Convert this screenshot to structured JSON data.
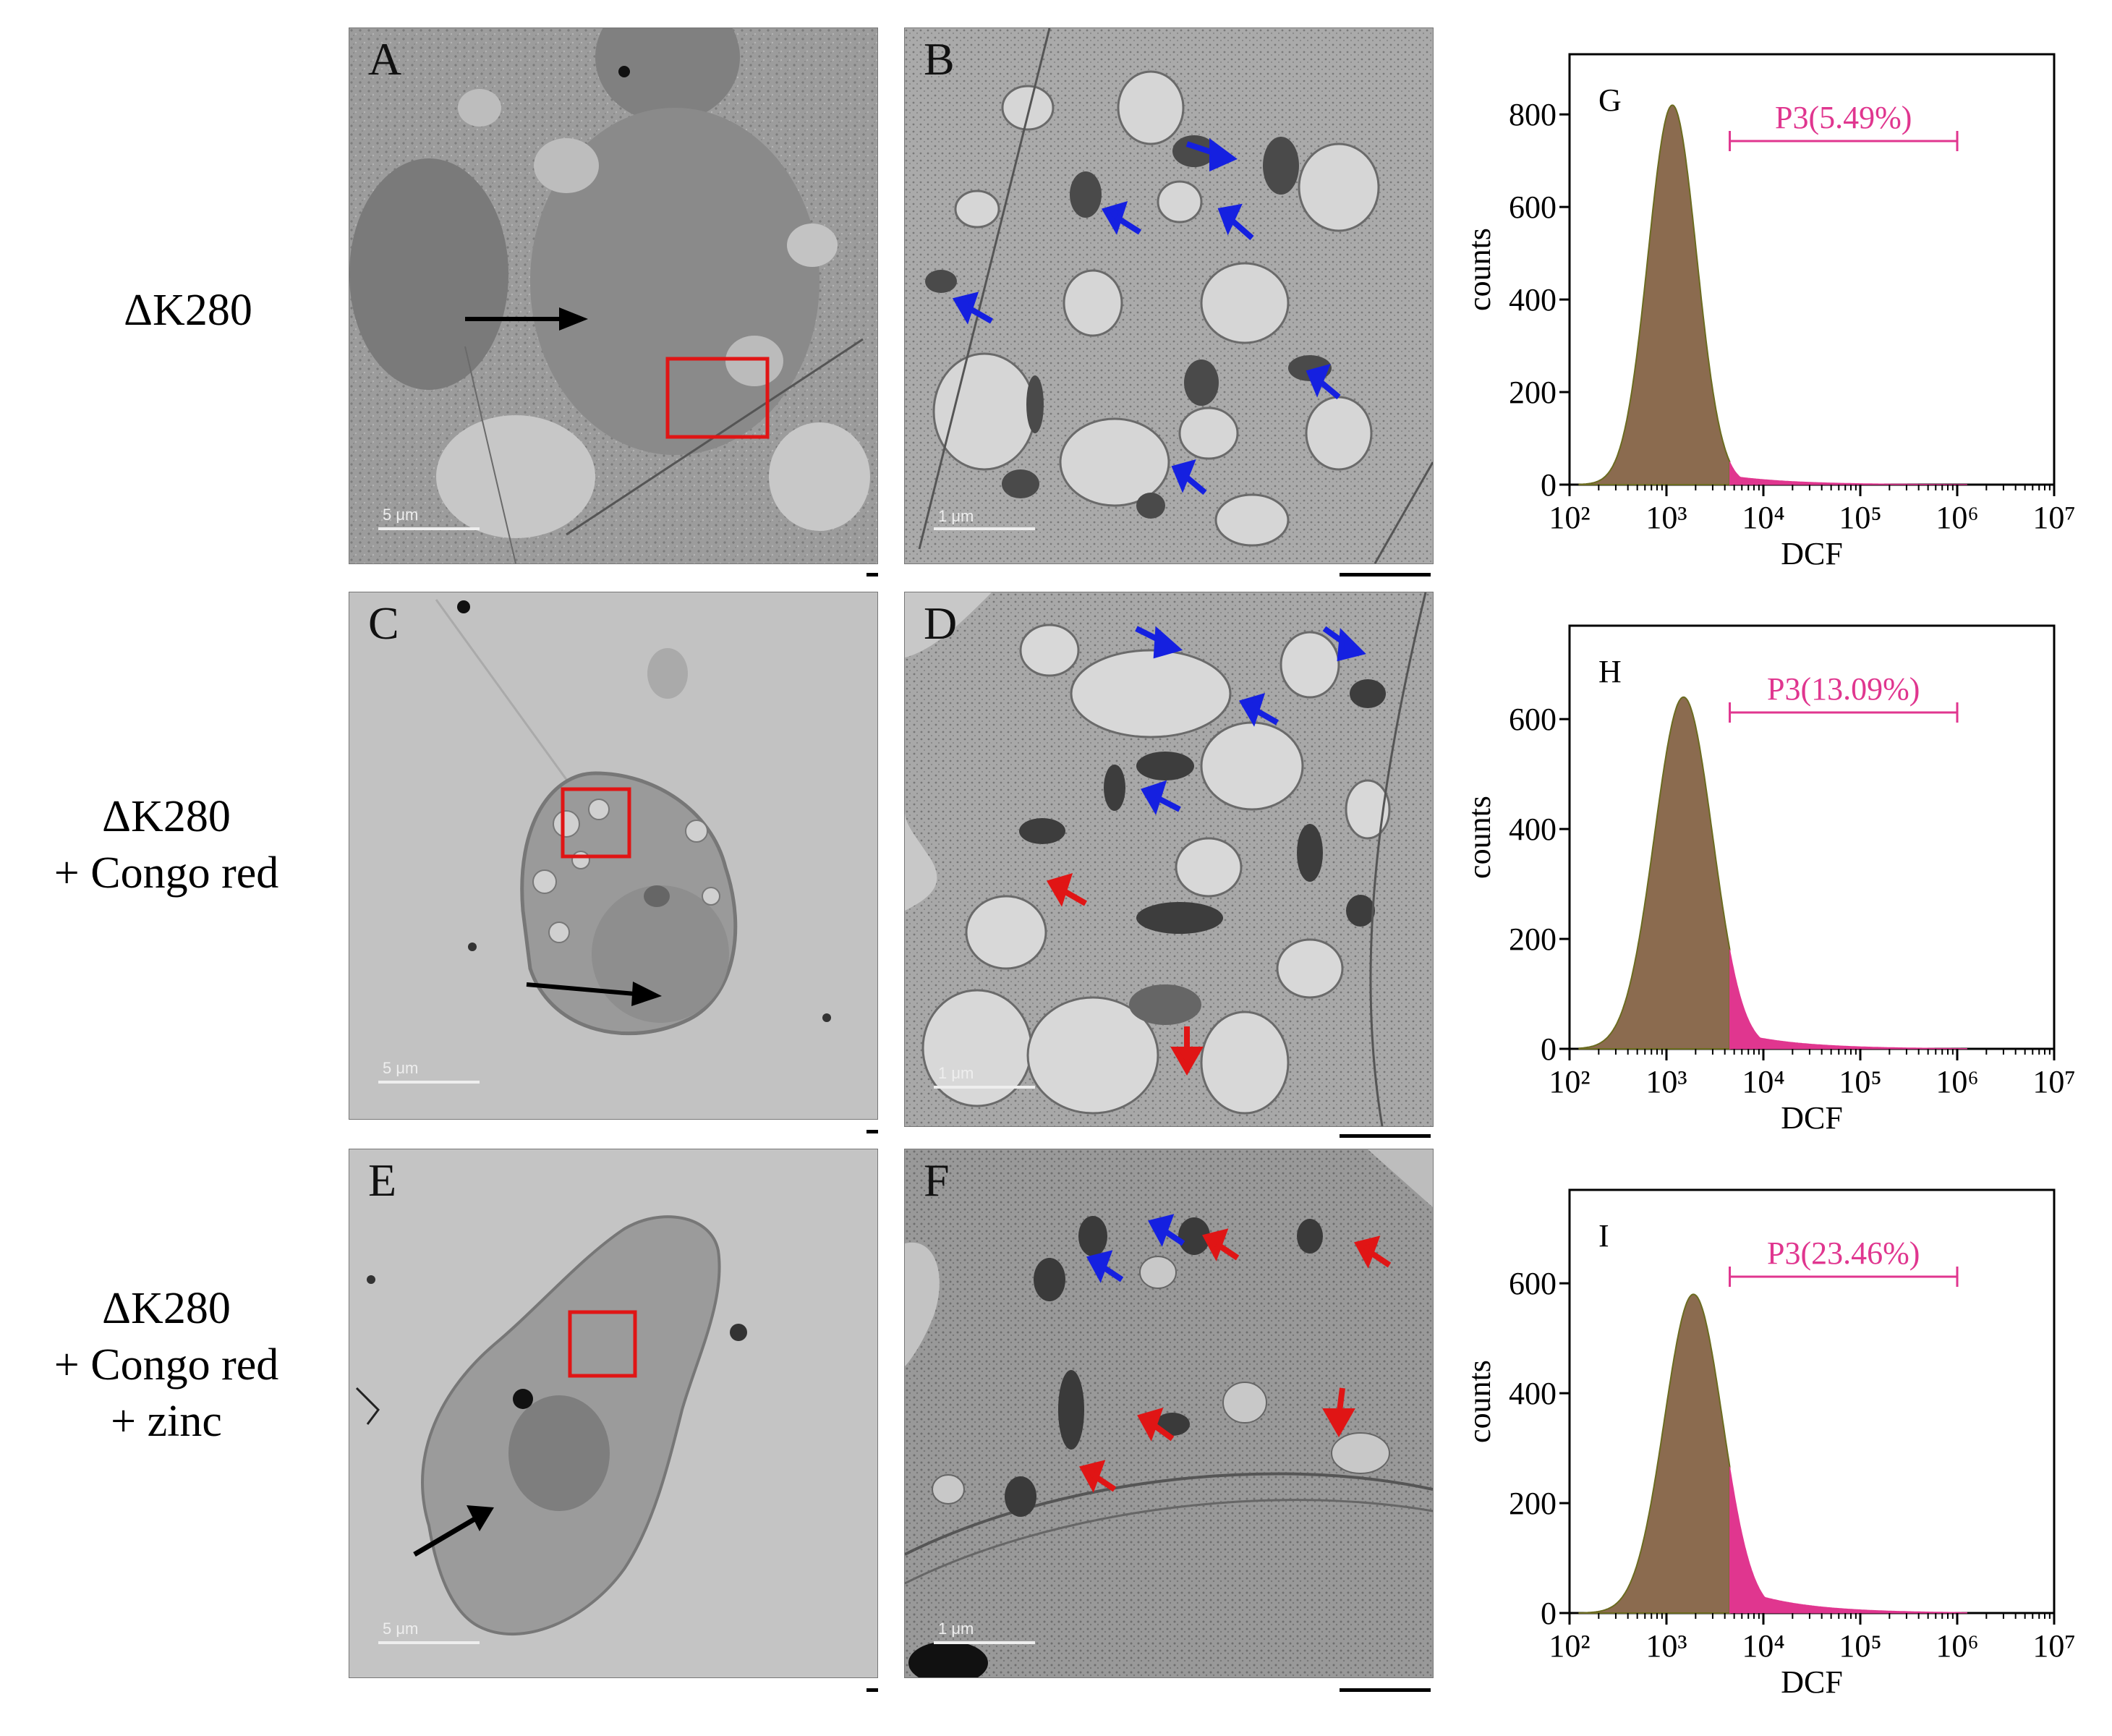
{
  "rows": [
    {
      "label_lines": [
        "ΔK280"
      ]
    },
    {
      "label_lines": [
        "ΔK280",
        "+  Congo red"
      ]
    },
    {
      "label_lines": [
        "ΔK280",
        "+  Congo red",
        "+ zinc"
      ]
    }
  ],
  "panels": {
    "A": {
      "letter": "A",
      "scale": "5 μm"
    },
    "B": {
      "letter": "B",
      "scale": "1 μm"
    },
    "C": {
      "letter": "C",
      "scale": "5 μm"
    },
    "D": {
      "letter": "D",
      "scale": "1 μm"
    },
    "E": {
      "letter": "E",
      "scale": "5 μm"
    },
    "F": {
      "letter": "F",
      "scale": "1 μm"
    }
  },
  "colors": {
    "histogram_main": "#8B6B4F",
    "histogram_outline": "#6B6B20",
    "gate": "#E0368F",
    "arrow_black": "#000000",
    "arrow_blue": "#1520E0",
    "arrow_red": "#E01515",
    "box_red": "#E01515"
  },
  "chart_data": [
    {
      "type": "histogram",
      "letter": "G",
      "xlabel": "DCF",
      "ylabel": "counts",
      "x_scale": "log",
      "xlim": [
        100,
        10000000
      ],
      "xticks": [
        "10²",
        "10³",
        "10⁴",
        "10⁵",
        "10⁶",
        "10⁷"
      ],
      "yticks": [
        0,
        200,
        400,
        600,
        800
      ],
      "ylim": [
        0,
        930
      ],
      "peak_x": 1150,
      "peak_y": 820,
      "log_sd": 0.25,
      "tail_level": 0.06,
      "gate": {
        "label": "P3(5.49%)",
        "x_start": 4500,
        "x_end": 1000000
      }
    },
    {
      "type": "histogram",
      "letter": "H",
      "xlabel": "DCF",
      "ylabel": "counts",
      "x_scale": "log",
      "xlim": [
        100,
        10000000
      ],
      "xticks": [
        "10²",
        "10³",
        "10⁴",
        "10⁵",
        "10⁶",
        "10⁷"
      ],
      "yticks": [
        0,
        200,
        400,
        600
      ],
      "ylim": [
        0,
        770
      ],
      "peak_x": 1500,
      "peak_y": 640,
      "log_sd": 0.3,
      "tail_level": 0.11,
      "gate": {
        "label": "P3(13.09%)",
        "x_start": 4500,
        "x_end": 1000000
      }
    },
    {
      "type": "histogram",
      "letter": "I",
      "xlabel": "DCF",
      "ylabel": "counts",
      "x_scale": "log",
      "xlim": [
        100,
        10000000
      ],
      "xticks": [
        "10²",
        "10³",
        "10⁴",
        "10⁵",
        "10⁶",
        "10⁷"
      ],
      "yticks": [
        0,
        200,
        400,
        600
      ],
      "ylim": [
        0,
        770
      ],
      "peak_x": 1900,
      "peak_y": 580,
      "log_sd": 0.3,
      "tail_level": 0.16,
      "gate": {
        "label": "P3(23.46%)",
        "x_start": 4500,
        "x_end": 1000000
      }
    }
  ]
}
